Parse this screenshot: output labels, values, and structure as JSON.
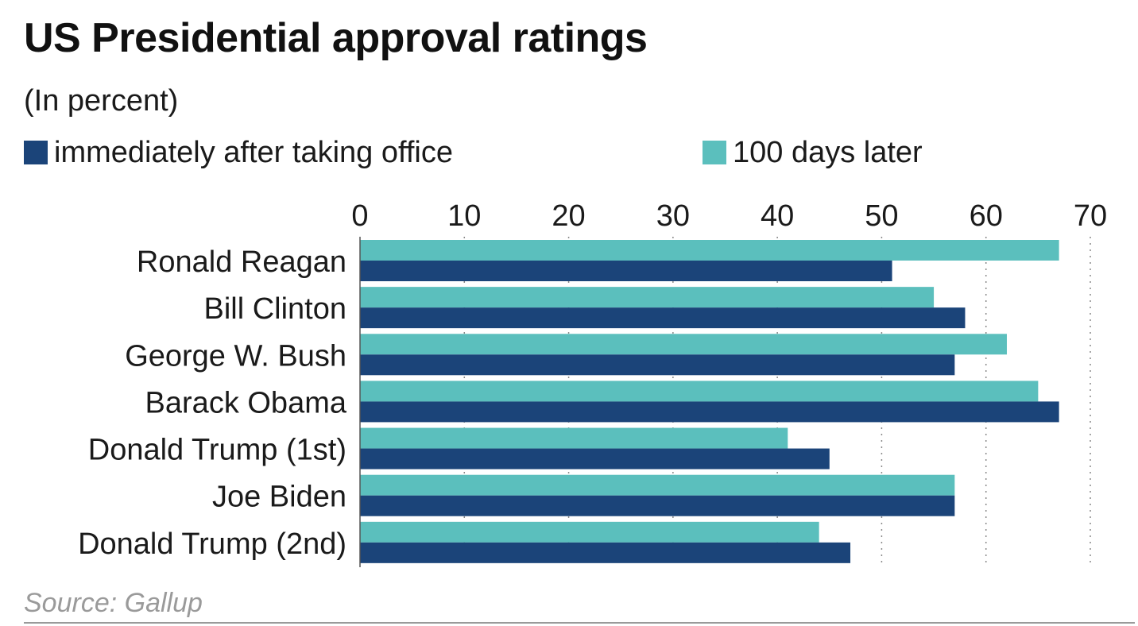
{
  "colors": {
    "series_1": "#1b4479",
    "series_2": "#5bbfbd",
    "grid": "#8a8a8a",
    "text": "#1a1a1a",
    "source": "#9a9a9a"
  },
  "source": "Source: Gallup",
  "chart_data": {
    "type": "bar",
    "orientation": "horizontal",
    "title": "US Presidential approval ratings",
    "subtitle": "(In percent)",
    "categories": [
      "Ronald Reagan",
      "Bill Clinton",
      "George W. Bush",
      "Barack Obama",
      "Donald Trump (1st)",
      "Joe Biden",
      "Donald Trump (2nd)"
    ],
    "series": [
      {
        "name": "immediately after taking office",
        "values": [
          51,
          58,
          57,
          67,
          45,
          57,
          47
        ]
      },
      {
        "name": "100 days later",
        "values": [
          67,
          55,
          62,
          65,
          41,
          57,
          44
        ]
      }
    ],
    "xlim": [
      0,
      70
    ],
    "xticks": [
      "0",
      "10",
      "20",
      "30",
      "40",
      "50",
      "60",
      "70"
    ],
    "grid": true,
    "legend": "top",
    "xlabel": "",
    "ylabel": ""
  }
}
